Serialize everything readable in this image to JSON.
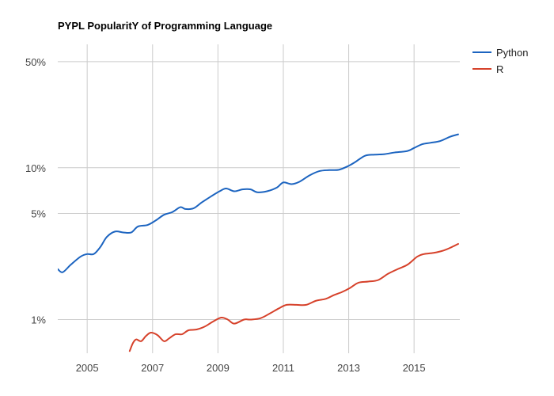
{
  "chart_data": {
    "type": "line",
    "title": "PYPL PopularitY of Programming Language",
    "xlabel": "",
    "ylabel": "",
    "y_scale": "log",
    "x_range": [
      2004.1,
      2016.4
    ],
    "ylim": [
      0.6,
      65
    ],
    "x_ticks": [
      {
        "value": 2005,
        "label": "2005"
      },
      {
        "value": 2007,
        "label": "2007"
      },
      {
        "value": 2009,
        "label": "2009"
      },
      {
        "value": 2011,
        "label": "2011"
      },
      {
        "value": 2013,
        "label": "2013"
      },
      {
        "value": 2015,
        "label": "2015"
      }
    ],
    "y_ticks": [
      {
        "value": 50,
        "label": "50%"
      },
      {
        "value": 10,
        "label": "10%"
      },
      {
        "value": 5,
        "label": "5%"
      },
      {
        "value": 1,
        "label": "1%"
      }
    ],
    "grid": true,
    "legend_position": "right",
    "series": [
      {
        "name": "Python",
        "color": "#1c64c0",
        "points": [
          [
            2004.1,
            2.15
          ],
          [
            2004.25,
            2.05
          ],
          [
            2004.5,
            2.3
          ],
          [
            2004.8,
            2.6
          ],
          [
            2005.0,
            2.7
          ],
          [
            2005.2,
            2.7
          ],
          [
            2005.4,
            3.0
          ],
          [
            2005.6,
            3.5
          ],
          [
            2005.85,
            3.8
          ],
          [
            2006.1,
            3.75
          ],
          [
            2006.35,
            3.75
          ],
          [
            2006.55,
            4.1
          ],
          [
            2006.85,
            4.2
          ],
          [
            2007.1,
            4.5
          ],
          [
            2007.35,
            4.9
          ],
          [
            2007.6,
            5.1
          ],
          [
            2007.85,
            5.5
          ],
          [
            2008.0,
            5.35
          ],
          [
            2008.25,
            5.4
          ],
          [
            2008.5,
            5.9
          ],
          [
            2008.8,
            6.5
          ],
          [
            2009.05,
            7.0
          ],
          [
            2009.25,
            7.3
          ],
          [
            2009.5,
            7.0
          ],
          [
            2009.75,
            7.2
          ],
          [
            2010.0,
            7.2
          ],
          [
            2010.2,
            6.9
          ],
          [
            2010.5,
            7.0
          ],
          [
            2010.8,
            7.4
          ],
          [
            2011.0,
            8.0
          ],
          [
            2011.25,
            7.8
          ],
          [
            2011.5,
            8.1
          ],
          [
            2011.8,
            8.9
          ],
          [
            2012.1,
            9.5
          ],
          [
            2012.4,
            9.65
          ],
          [
            2012.7,
            9.7
          ],
          [
            2013.0,
            10.3
          ],
          [
            2013.2,
            10.9
          ],
          [
            2013.5,
            12.0
          ],
          [
            2013.8,
            12.2
          ],
          [
            2014.1,
            12.3
          ],
          [
            2014.4,
            12.6
          ],
          [
            2014.8,
            12.9
          ],
          [
            2015.0,
            13.5
          ],
          [
            2015.25,
            14.3
          ],
          [
            2015.5,
            14.6
          ],
          [
            2015.8,
            15.0
          ],
          [
            2016.1,
            16.0
          ],
          [
            2016.35,
            16.6
          ]
        ]
      },
      {
        "name": "R",
        "color": "#d6412a",
        "points": [
          [
            2006.3,
            0.62
          ],
          [
            2006.4,
            0.7
          ],
          [
            2006.5,
            0.74
          ],
          [
            2006.65,
            0.72
          ],
          [
            2006.8,
            0.78
          ],
          [
            2006.95,
            0.82
          ],
          [
            2007.15,
            0.79
          ],
          [
            2007.35,
            0.72
          ],
          [
            2007.5,
            0.75
          ],
          [
            2007.7,
            0.8
          ],
          [
            2007.9,
            0.8
          ],
          [
            2008.1,
            0.85
          ],
          [
            2008.35,
            0.86
          ],
          [
            2008.6,
            0.9
          ],
          [
            2008.85,
            0.97
          ],
          [
            2009.1,
            1.03
          ],
          [
            2009.3,
            1.0
          ],
          [
            2009.5,
            0.94
          ],
          [
            2009.8,
            1.0
          ],
          [
            2010.0,
            1.0
          ],
          [
            2010.3,
            1.02
          ],
          [
            2010.6,
            1.1
          ],
          [
            2010.85,
            1.18
          ],
          [
            2011.1,
            1.25
          ],
          [
            2011.4,
            1.25
          ],
          [
            2011.7,
            1.25
          ],
          [
            2012.0,
            1.33
          ],
          [
            2012.3,
            1.37
          ],
          [
            2012.55,
            1.45
          ],
          [
            2012.8,
            1.52
          ],
          [
            2013.05,
            1.62
          ],
          [
            2013.3,
            1.75
          ],
          [
            2013.6,
            1.78
          ],
          [
            2013.9,
            1.82
          ],
          [
            2014.2,
            2.0
          ],
          [
            2014.5,
            2.15
          ],
          [
            2014.8,
            2.3
          ],
          [
            2015.1,
            2.6
          ],
          [
            2015.3,
            2.7
          ],
          [
            2015.6,
            2.75
          ],
          [
            2015.9,
            2.85
          ],
          [
            2016.15,
            3.0
          ],
          [
            2016.35,
            3.15
          ]
        ]
      }
    ]
  }
}
